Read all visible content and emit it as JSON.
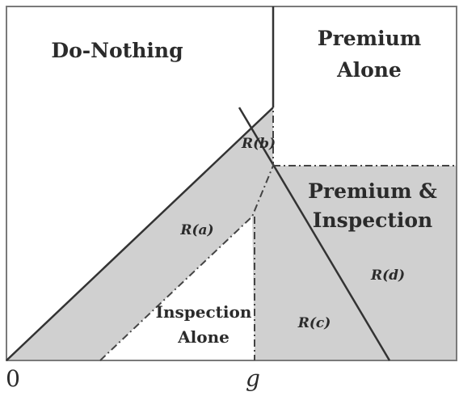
{
  "regions": {
    "do_nothing": "Do-Nothing",
    "premium_alone_line1": "Premium",
    "premium_alone_line2": "Alone",
    "premium_inspection_line1": "Premium &",
    "premium_inspection_line2": "Inspection",
    "inspection_alone_line1": "Inspection",
    "inspection_alone_line2": "Alone",
    "r_a": "R(a)",
    "r_b": "R(b)",
    "r_c": "R(c)",
    "r_d": "R(d)"
  },
  "axis": {
    "origin": "0",
    "g": "g"
  },
  "colors": {
    "shaded": "#d0d0d0",
    "line": "#333333",
    "frame": "#7a7a7a"
  }
}
